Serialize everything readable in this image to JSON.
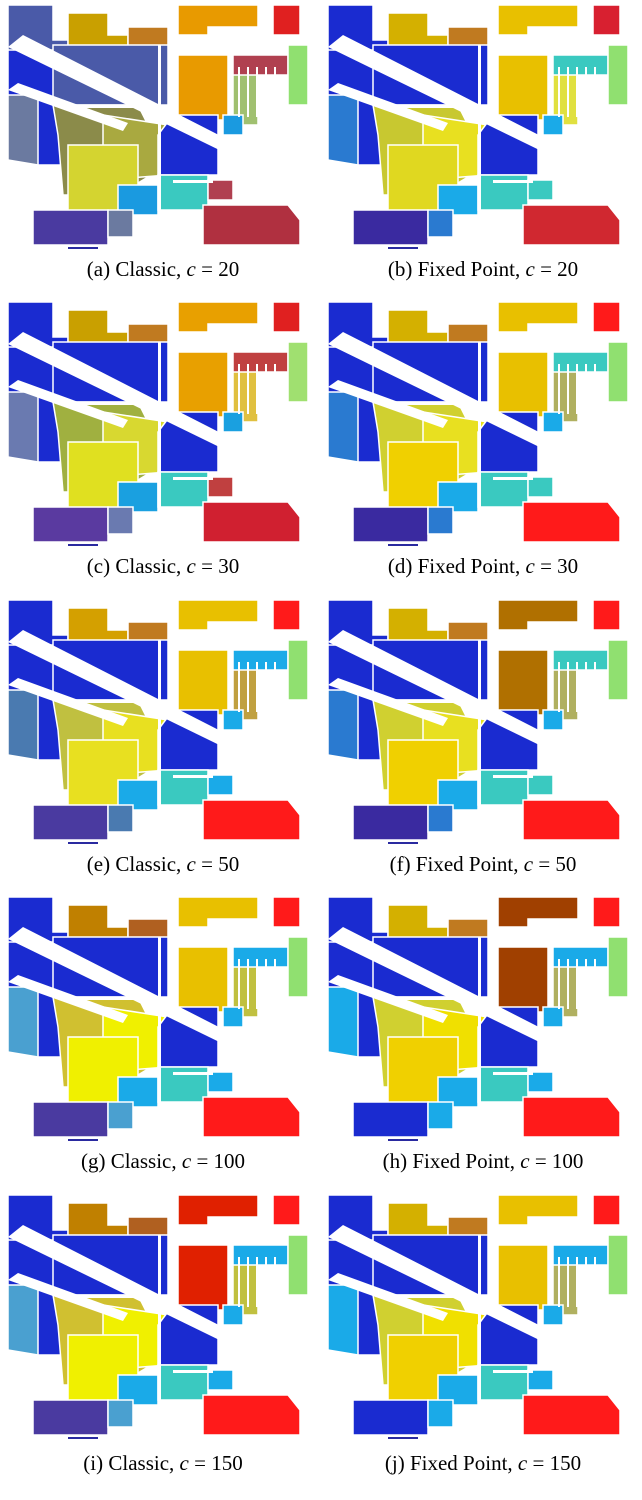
{
  "figure": {
    "panels": [
      {
        "id": "a",
        "label": "(a) Classic,",
        "var": "c",
        "eq": "=",
        "value": "20",
        "method": "Classic",
        "colors": {
          "tl": "#4a5aa8",
          "roof1": "#c9a000",
          "roof2": "#e89a00",
          "big": "#a9a940",
          "mid": "#8b8b4a",
          "left": "#6b7aa0",
          "right": "#a0c070",
          "bot": "#b04050",
          "br": "#b03040",
          "blue": "#1a2bd0",
          "cyan": "#1a9ae0",
          "ygrn": "#d4d430",
          "bottomblue": "#4a3aa0",
          "brown": "#c07a20",
          "red": "#e02020",
          "teal": "#3ac9c0",
          "lgreen": "#90e070"
        }
      },
      {
        "id": "b",
        "label": "(b) Fixed Point,",
        "var": "c",
        "eq": "=",
        "value": "20",
        "method": "Fixed Point",
        "colors": {
          "tl": "#1a2bd0",
          "roof1": "#d4b000",
          "roof2": "#e8c000",
          "big": "#e8e020",
          "mid": "#c8c830",
          "left": "#2a7ad0",
          "right": "#e0e040",
          "bot": "#3ac9c0",
          "br": "#d02830",
          "blue": "#1a2bd0",
          "cyan": "#1aaae8",
          "ygrn": "#e0d820",
          "bottomblue": "#3a2aa0",
          "brown": "#c07a20",
          "red": "#d82030",
          "teal": "#3ac9c0",
          "lgreen": "#90e070"
        }
      },
      {
        "id": "c",
        "label": "(c) Classic,",
        "var": "c",
        "eq": "=",
        "value": "30",
        "method": "Classic",
        "colors": {
          "tl": "#1a2bd0",
          "roof1": "#c9a000",
          "roof2": "#e8a000",
          "big": "#d8d830",
          "mid": "#a0b040",
          "left": "#6a7ab0",
          "right": "#e0c040",
          "bot": "#c04040",
          "br": "#d02030",
          "blue": "#1a2bd0",
          "cyan": "#1aa0e0",
          "ygrn": "#e0e020",
          "bottomblue": "#5a3aa0",
          "brown": "#c07a20",
          "red": "#e02020",
          "teal": "#3ac9c0",
          "lgreen": "#a0e070"
        }
      },
      {
        "id": "d",
        "label": "(d) Fixed Point,",
        "var": "c",
        "eq": "=",
        "value": "30",
        "method": "Fixed Point",
        "colors": {
          "tl": "#1a2bd0",
          "roof1": "#d4b000",
          "roof2": "#e8c000",
          "big": "#e8e020",
          "mid": "#d0d030",
          "left": "#2a7ad0",
          "right": "#b0b060",
          "bot": "#3ac9c0",
          "br": "#ff1a1a",
          "blue": "#1a2bd0",
          "cyan": "#1aaae8",
          "ygrn": "#f0d000",
          "bottomblue": "#3a2aa0",
          "brown": "#c07a20",
          "red": "#ff1a1a",
          "teal": "#3ac9c0",
          "lgreen": "#90e070"
        }
      },
      {
        "id": "e",
        "label": "(e) Classic,",
        "var": "c",
        "eq": "=",
        "value": "50",
        "method": "Classic",
        "colors": {
          "tl": "#1a2bd0",
          "roof1": "#d4a000",
          "roof2": "#e8c000",
          "big": "#e8e020",
          "mid": "#c0c040",
          "left": "#4a7ab0",
          "right": "#c0a040",
          "bot": "#1aaae8",
          "br": "#ff1a1a",
          "blue": "#1a2bd0",
          "cyan": "#1aaae8",
          "ygrn": "#e8e020",
          "bottomblue": "#4a3aa0",
          "brown": "#c07a20",
          "red": "#ff1a1a",
          "teal": "#3ac9c0",
          "lgreen": "#90e070"
        }
      },
      {
        "id": "f",
        "label": "(f) Fixed Point,",
        "var": "c",
        "eq": "=",
        "value": "50",
        "method": "Fixed Point",
        "colors": {
          "tl": "#1a2bd0",
          "roof1": "#d4b000",
          "roof2": "#b07000",
          "big": "#e8e020",
          "mid": "#d0d030",
          "left": "#2a7ad0",
          "right": "#b0b060",
          "bot": "#3ac9c0",
          "br": "#ff1a1a",
          "blue": "#1a2bd0",
          "cyan": "#1aaae8",
          "ygrn": "#f0d000",
          "bottomblue": "#3a2aa0",
          "brown": "#c07a20",
          "red": "#ff1a1a",
          "teal": "#3ac9c0",
          "lgreen": "#90e070"
        }
      },
      {
        "id": "g",
        "label": "(g) Classic,",
        "var": "c",
        "eq": "=",
        "value": "100",
        "method": "Classic",
        "colors": {
          "tl": "#1a2bd0",
          "roof1": "#c08000",
          "roof2": "#e8c000",
          "big": "#f0f000",
          "mid": "#d0c030",
          "left": "#4aa0d0",
          "right": "#c0c040",
          "bot": "#1aaae8",
          "br": "#ff1a1a",
          "blue": "#1a2bd0",
          "cyan": "#1aaae8",
          "ygrn": "#f0f000",
          "bottomblue": "#4a3aa0",
          "brown": "#b06020",
          "red": "#ff1a1a",
          "teal": "#3ac9c0",
          "lgreen": "#90e070"
        }
      },
      {
        "id": "h",
        "label": "(h) Fixed Point,",
        "var": "c",
        "eq": "=",
        "value": "100",
        "method": "Fixed Point",
        "colors": {
          "tl": "#1a2bd0",
          "roof1": "#d4b000",
          "roof2": "#a04000",
          "big": "#f0e000",
          "mid": "#d0d030",
          "left": "#1aaae8",
          "right": "#b0b060",
          "bot": "#1aaae8",
          "br": "#ff1a1a",
          "blue": "#1a2bd0",
          "cyan": "#1aaae8",
          "ygrn": "#f0d000",
          "bottomblue": "#1a2bd0",
          "brown": "#c07a20",
          "red": "#ff1a1a",
          "teal": "#3ac9c0",
          "lgreen": "#90e070"
        }
      },
      {
        "id": "i",
        "label": "(i) Classic,",
        "var": "c",
        "eq": "=",
        "value": "150",
        "method": "Classic",
        "colors": {
          "tl": "#1a2bd0",
          "roof1": "#c08000",
          "roof2": "#e02000",
          "big": "#f0f000",
          "mid": "#d0c030",
          "left": "#4aa0d0",
          "right": "#c0c040",
          "bot": "#1aaae8",
          "br": "#ff1a1a",
          "blue": "#1a2bd0",
          "cyan": "#1aaae8",
          "ygrn": "#f0f000",
          "bottomblue": "#4a3aa0",
          "brown": "#b06020",
          "red": "#ff1a1a",
          "teal": "#3ac9c0",
          "lgreen": "#90e070"
        }
      },
      {
        "id": "j",
        "label": "(j) Fixed Point,",
        "var": "c",
        "eq": "=",
        "value": "150",
        "method": "Fixed Point",
        "colors": {
          "tl": "#1a2bd0",
          "roof1": "#d4b000",
          "roof2": "#e8c000",
          "big": "#f0e000",
          "mid": "#d0d030",
          "left": "#1aaae8",
          "right": "#b0b060",
          "bot": "#1aaae8",
          "br": "#ff1a1a",
          "blue": "#1a2bd0",
          "cyan": "#1aaae8",
          "ygrn": "#f0d000",
          "bottomblue": "#1a2bd0",
          "brown": "#c07a20",
          "red": "#ff1a1a",
          "teal": "#3ac9c0",
          "lgreen": "#90e070"
        }
      }
    ]
  }
}
